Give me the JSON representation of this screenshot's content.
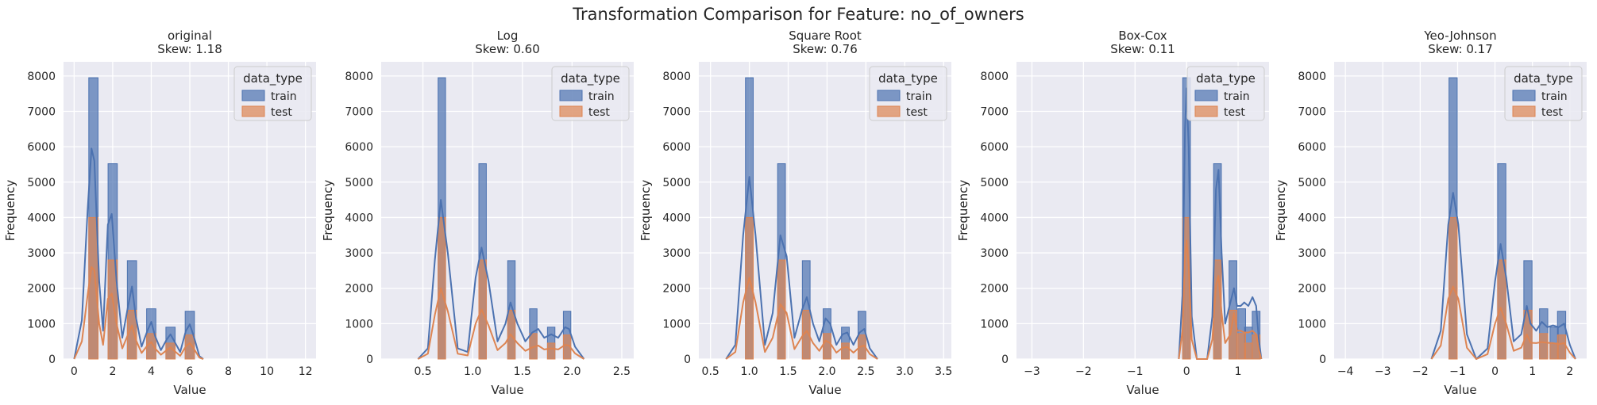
{
  "suptitle": "Transformation Comparison for Feature: no_of_owners",
  "colors": {
    "train": "#4c72b0",
    "test": "#dd8452",
    "background": "#eaeaf2",
    "grid": "#ffffff"
  },
  "legend": {
    "title": "data_type",
    "entries": [
      "train",
      "test"
    ],
    "placement": "top-right"
  },
  "chart_data": [
    {
      "type": "histogram",
      "title": "original",
      "subtitle": "Skew: 1.18",
      "xlabel": "Value",
      "ylabel": "Frequency",
      "xlim": [
        -0.55,
        12.55
      ],
      "ylim": [
        0,
        8400
      ],
      "xticks": [
        0,
        2,
        4,
        6,
        8,
        10,
        12
      ],
      "xtick_labels": [
        "0",
        "2",
        "4",
        "6",
        "8",
        "10",
        "12"
      ],
      "yticks": [
        0,
        1000,
        2000,
        3000,
        4000,
        5000,
        6000,
        7000,
        8000
      ],
      "grid": true,
      "bin_width": 0.48,
      "train": {
        "x": [
          1,
          2,
          3,
          4,
          5,
          6
        ],
        "counts": [
          7950,
          5520,
          2780,
          1420,
          900,
          1350
        ]
      },
      "test": {
        "x": [
          1,
          2,
          3,
          4,
          5,
          6
        ],
        "counts": [
          4000,
          2800,
          1380,
          720,
          450,
          680
        ]
      },
      "kde_train": [
        [
          0,
          0
        ],
        [
          0.4,
          1100
        ],
        [
          0.7,
          4200
        ],
        [
          0.9,
          5950
        ],
        [
          1.05,
          5600
        ],
        [
          1.3,
          2200
        ],
        [
          1.5,
          800
        ],
        [
          1.75,
          3800
        ],
        [
          1.95,
          4100
        ],
        [
          2.2,
          2200
        ],
        [
          2.5,
          600
        ],
        [
          2.8,
          1500
        ],
        [
          3.0,
          2050
        ],
        [
          3.2,
          1200
        ],
        [
          3.5,
          350
        ],
        [
          3.8,
          800
        ],
        [
          4.0,
          1050
        ],
        [
          4.2,
          650
        ],
        [
          4.5,
          250
        ],
        [
          4.8,
          550
        ],
        [
          5.0,
          700
        ],
        [
          5.2,
          500
        ],
        [
          5.5,
          200
        ],
        [
          5.8,
          800
        ],
        [
          6.0,
          980
        ],
        [
          6.2,
          650
        ],
        [
          6.5,
          80
        ],
        [
          6.7,
          0
        ]
      ],
      "kde_test": [
        [
          0,
          0
        ],
        [
          0.4,
          500
        ],
        [
          0.7,
          1800
        ],
        [
          0.9,
          2600
        ],
        [
          1.05,
          2500
        ],
        [
          1.3,
          1000
        ],
        [
          1.5,
          400
        ],
        [
          1.75,
          1700
        ],
        [
          1.95,
          1850
        ],
        [
          2.2,
          1000
        ],
        [
          2.5,
          300
        ],
        [
          2.8,
          700
        ],
        [
          3.0,
          950
        ],
        [
          3.2,
          550
        ],
        [
          3.5,
          170
        ],
        [
          3.8,
          380
        ],
        [
          4.0,
          480
        ],
        [
          4.2,
          300
        ],
        [
          4.5,
          120
        ],
        [
          4.8,
          250
        ],
        [
          5.0,
          330
        ],
        [
          5.2,
          230
        ],
        [
          5.5,
          90
        ],
        [
          5.8,
          360
        ],
        [
          6.0,
          450
        ],
        [
          6.2,
          300
        ],
        [
          6.5,
          40
        ],
        [
          6.7,
          0
        ]
      ]
    },
    {
      "type": "histogram",
      "title": "Log",
      "subtitle": "Skew: 0.60",
      "xlabel": "Value",
      "ylabel": "Frequency",
      "xlim": [
        0.08,
        2.62
      ],
      "ylim": [
        0,
        8400
      ],
      "xticks": [
        0.5,
        1.0,
        1.5,
        2.0,
        2.5
      ],
      "xtick_labels": [
        "0.5",
        "1.0",
        "1.5",
        "2.0",
        "2.5"
      ],
      "yticks": [
        0,
        1000,
        2000,
        3000,
        4000,
        5000,
        6000,
        7000,
        8000
      ],
      "grid": true,
      "bin_width": 0.075,
      "train": {
        "x": [
          0.69,
          1.1,
          1.39,
          1.61,
          1.79,
          1.95
        ],
        "counts": [
          7950,
          5520,
          2780,
          1420,
          900,
          1350
        ]
      },
      "test": {
        "x": [
          0.69,
          1.1,
          1.39,
          1.61,
          1.79,
          1.95
        ],
        "counts": [
          4000,
          2800,
          1380,
          720,
          450,
          680
        ]
      },
      "kde_train": [
        [
          0.45,
          0
        ],
        [
          0.55,
          300
        ],
        [
          0.62,
          2800
        ],
        [
          0.68,
          4500
        ],
        [
          0.75,
          3000
        ],
        [
          0.85,
          300
        ],
        [
          0.95,
          200
        ],
        [
          1.03,
          2300
        ],
        [
          1.09,
          3150
        ],
        [
          1.16,
          2200
        ],
        [
          1.25,
          500
        ],
        [
          1.33,
          1000
        ],
        [
          1.38,
          1600
        ],
        [
          1.45,
          1000
        ],
        [
          1.53,
          500
        ],
        [
          1.6,
          750
        ],
        [
          1.66,
          850
        ],
        [
          1.72,
          600
        ],
        [
          1.79,
          700
        ],
        [
          1.86,
          600
        ],
        [
          1.93,
          900
        ],
        [
          1.97,
          850
        ],
        [
          2.03,
          350
        ],
        [
          2.12,
          0
        ]
      ],
      "kde_test": [
        [
          0.45,
          0
        ],
        [
          0.55,
          150
        ],
        [
          0.62,
          1250
        ],
        [
          0.68,
          2000
        ],
        [
          0.75,
          1350
        ],
        [
          0.85,
          150
        ],
        [
          0.95,
          100
        ],
        [
          1.03,
          1000
        ],
        [
          1.09,
          1400
        ],
        [
          1.16,
          950
        ],
        [
          1.25,
          250
        ],
        [
          1.33,
          450
        ],
        [
          1.38,
          700
        ],
        [
          1.45,
          450
        ],
        [
          1.53,
          230
        ],
        [
          1.6,
          330
        ],
        [
          1.66,
          380
        ],
        [
          1.72,
          270
        ],
        [
          1.79,
          300
        ],
        [
          1.86,
          270
        ],
        [
          1.93,
          400
        ],
        [
          1.97,
          380
        ],
        [
          2.03,
          160
        ],
        [
          2.12,
          0
        ]
      ]
    },
    {
      "type": "histogram",
      "title": "Square Root",
      "subtitle": "Skew: 0.76",
      "xlabel": "Value",
      "ylabel": "Frequency",
      "xlim": [
        0.35,
        3.6
      ],
      "ylim": [
        0,
        8400
      ],
      "xticks": [
        0.5,
        1.0,
        1.5,
        2.0,
        2.5,
        3.0,
        3.5
      ],
      "xtick_labels": [
        "0.5",
        "1.0",
        "1.5",
        "2.0",
        "2.5",
        "3.0",
        "3.5"
      ],
      "yticks": [
        0,
        1000,
        2000,
        3000,
        4000,
        5000,
        6000,
        7000,
        8000
      ],
      "grid": true,
      "bin_width": 0.1,
      "train": {
        "x": [
          1.0,
          1.414,
          1.732,
          2.0,
          2.236,
          2.449
        ],
        "counts": [
          7950,
          5520,
          2780,
          1420,
          900,
          1350
        ]
      },
      "test": {
        "x": [
          1.0,
          1.414,
          1.732,
          2.0,
          2.236,
          2.449
        ],
        "counts": [
          4000,
          2800,
          1380,
          720,
          450,
          680
        ]
      },
      "kde_train": [
        [
          0.7,
          0
        ],
        [
          0.82,
          400
        ],
        [
          0.92,
          3500
        ],
        [
          1.0,
          5150
        ],
        [
          1.08,
          3500
        ],
        [
          1.2,
          400
        ],
        [
          1.3,
          1300
        ],
        [
          1.4,
          3500
        ],
        [
          1.48,
          2900
        ],
        [
          1.58,
          600
        ],
        [
          1.68,
          1400
        ],
        [
          1.74,
          1750
        ],
        [
          1.82,
          1000
        ],
        [
          1.9,
          500
        ],
        [
          1.98,
          1150
        ],
        [
          2.04,
          1000
        ],
        [
          2.12,
          400
        ],
        [
          2.2,
          700
        ],
        [
          2.26,
          750
        ],
        [
          2.34,
          400
        ],
        [
          2.42,
          750
        ],
        [
          2.48,
          850
        ],
        [
          2.55,
          300
        ],
        [
          2.65,
          0
        ]
      ],
      "kde_test": [
        [
          0.7,
          0
        ],
        [
          0.82,
          200
        ],
        [
          0.92,
          1600
        ],
        [
          1.0,
          2300
        ],
        [
          1.08,
          1600
        ],
        [
          1.2,
          200
        ],
        [
          1.3,
          600
        ],
        [
          1.4,
          1550
        ],
        [
          1.48,
          1300
        ],
        [
          1.58,
          280
        ],
        [
          1.68,
          640
        ],
        [
          1.74,
          800
        ],
        [
          1.82,
          450
        ],
        [
          1.9,
          230
        ],
        [
          1.98,
          520
        ],
        [
          2.04,
          450
        ],
        [
          2.12,
          180
        ],
        [
          2.2,
          320
        ],
        [
          2.26,
          340
        ],
        [
          2.34,
          180
        ],
        [
          2.42,
          340
        ],
        [
          2.48,
          380
        ],
        [
          2.55,
          140
        ],
        [
          2.65,
          0
        ]
      ]
    },
    {
      "type": "histogram",
      "title": "Box-Cox",
      "subtitle": "Skew: 0.11",
      "xlabel": "Value",
      "ylabel": "Frequency",
      "xlim": [
        -3.3,
        1.6
      ],
      "ylim": [
        0,
        8400
      ],
      "xticks": [
        -3,
        -2,
        -1,
        0,
        1
      ],
      "xtick_labels": [
        "−3",
        "−2",
        "−1",
        "0",
        "1"
      ],
      "yticks": [
        0,
        1000,
        2000,
        3000,
        4000,
        5000,
        6000,
        7000,
        8000
      ],
      "grid": true,
      "bin_width": 0.15,
      "train": {
        "x": [
          0.0,
          0.6,
          0.9,
          1.07,
          1.2,
          1.35
        ],
        "counts": [
          7950,
          5520,
          2780,
          1420,
          900,
          1350
        ]
      },
      "test": {
        "x": [
          0.0,
          0.6,
          0.9,
          1.07,
          1.2,
          1.35
        ],
        "counts": [
          4000,
          2800,
          1380,
          720,
          450,
          680
        ]
      },
      "kde_train": [
        [
          -0.15,
          0
        ],
        [
          -0.08,
          1800
        ],
        [
          -0.03,
          6500
        ],
        [
          0.0,
          7650
        ],
        [
          0.04,
          6000
        ],
        [
          0.1,
          1200
        ],
        [
          0.2,
          0
        ],
        [
          0.4,
          0
        ],
        [
          0.5,
          1200
        ],
        [
          0.57,
          4800
        ],
        [
          0.62,
          5350
        ],
        [
          0.68,
          3000
        ],
        [
          0.75,
          1000
        ],
        [
          0.85,
          1600
        ],
        [
          0.92,
          2000
        ],
        [
          0.98,
          1500
        ],
        [
          1.05,
          1500
        ],
        [
          1.12,
          1600
        ],
        [
          1.2,
          1500
        ],
        [
          1.28,
          1750
        ],
        [
          1.35,
          1500
        ],
        [
          1.4,
          600
        ],
        [
          1.45,
          0
        ]
      ],
      "kde_test": [
        [
          -0.15,
          0
        ],
        [
          -0.08,
          800
        ],
        [
          -0.03,
          2900
        ],
        [
          0.0,
          3350
        ],
        [
          0.04,
          2650
        ],
        [
          0.1,
          550
        ],
        [
          0.2,
          0
        ],
        [
          0.4,
          0
        ],
        [
          0.5,
          550
        ],
        [
          0.57,
          2100
        ],
        [
          0.62,
          2350
        ],
        [
          0.68,
          1300
        ],
        [
          0.75,
          450
        ],
        [
          0.85,
          700
        ],
        [
          0.92,
          1300
        ],
        [
          0.98,
          800
        ],
        [
          1.05,
          800
        ],
        [
          1.12,
          750
        ],
        [
          1.2,
          750
        ],
        [
          1.28,
          800
        ],
        [
          1.35,
          700
        ],
        [
          1.4,
          280
        ],
        [
          1.45,
          0
        ]
      ]
    },
    {
      "type": "histogram",
      "title": "Yeo-Johnson",
      "subtitle": "Skew: 0.17",
      "xlabel": "Value",
      "ylabel": "Frequency",
      "xlim": [
        -4.3,
        2.45
      ],
      "ylim": [
        0,
        8400
      ],
      "xticks": [
        -4,
        -3,
        -2,
        -1,
        0,
        1,
        2
      ],
      "xtick_labels": [
        "−4",
        "−3",
        "−2",
        "−1",
        "0",
        "1",
        "2"
      ],
      "yticks": [
        0,
        1000,
        2000,
        3000,
        4000,
        5000,
        6000,
        7000,
        8000
      ],
      "grid": true,
      "bin_width": 0.22,
      "train": {
        "x": [
          -1.12,
          0.18,
          0.88,
          1.3,
          1.58,
          1.78
        ],
        "counts": [
          7950,
          5520,
          2780,
          1420,
          900,
          1350
        ]
      },
      "test": {
        "x": [
          -1.12,
          0.18,
          0.88,
          1.3,
          1.58,
          1.78
        ],
        "counts": [
          4000,
          2800,
          1380,
          720,
          450,
          680
        ]
      },
      "kde_train": [
        [
          -1.7,
          0
        ],
        [
          -1.45,
          800
        ],
        [
          -1.25,
          3800
        ],
        [
          -1.12,
          4700
        ],
        [
          -0.98,
          3800
        ],
        [
          -0.75,
          700
        ],
        [
          -0.5,
          0
        ],
        [
          -0.2,
          300
        ],
        [
          0.0,
          2200
        ],
        [
          0.15,
          3250
        ],
        [
          0.3,
          2300
        ],
        [
          0.5,
          500
        ],
        [
          0.7,
          700
        ],
        [
          0.85,
          1500
        ],
        [
          0.95,
          1000
        ],
        [
          1.1,
          800
        ],
        [
          1.25,
          1050
        ],
        [
          1.4,
          900
        ],
        [
          1.55,
          950
        ],
        [
          1.7,
          900
        ],
        [
          1.85,
          1000
        ],
        [
          2.0,
          400
        ],
        [
          2.15,
          0
        ]
      ],
      "kde_test": [
        [
          -1.7,
          0
        ],
        [
          -1.45,
          380
        ],
        [
          -1.25,
          1700
        ],
        [
          -1.12,
          2050
        ],
        [
          -0.98,
          1700
        ],
        [
          -0.75,
          320
        ],
        [
          -0.5,
          0
        ],
        [
          -0.2,
          140
        ],
        [
          0.0,
          1000
        ],
        [
          0.15,
          1450
        ],
        [
          0.3,
          1000
        ],
        [
          0.5,
          230
        ],
        [
          0.7,
          320
        ],
        [
          0.85,
          700
        ],
        [
          0.95,
          460
        ],
        [
          1.1,
          450
        ],
        [
          1.25,
          480
        ],
        [
          1.4,
          460
        ],
        [
          1.55,
          450
        ],
        [
          1.7,
          420
        ],
        [
          1.85,
          450
        ],
        [
          2.0,
          180
        ],
        [
          2.15,
          0
        ]
      ]
    }
  ]
}
